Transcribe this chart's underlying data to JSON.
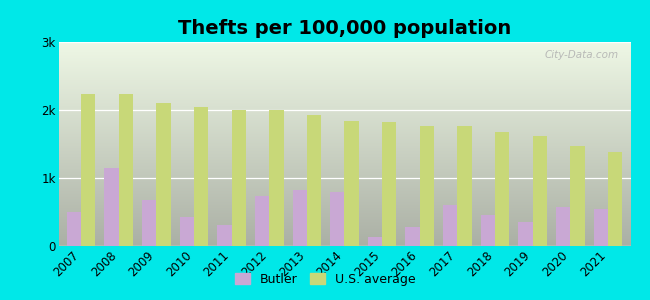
{
  "title": "Thefts per 100,000 population",
  "years": [
    2007,
    2008,
    2009,
    2010,
    2011,
    2012,
    2013,
    2014,
    2015,
    2016,
    2017,
    2018,
    2019,
    2020,
    2021
  ],
  "butler": [
    500,
    1150,
    680,
    430,
    310,
    740,
    820,
    790,
    130,
    280,
    600,
    460,
    360,
    580,
    540
  ],
  "us_avg": [
    2230,
    2230,
    2100,
    2040,
    2000,
    2000,
    1930,
    1840,
    1830,
    1760,
    1760,
    1680,
    1620,
    1470,
    1380
  ],
  "butler_color": "#c9a8d4",
  "us_avg_color": "#c8d878",
  "bar_width": 0.38,
  "ylim": [
    0,
    3000
  ],
  "yticks": [
    0,
    1000,
    2000,
    3000
  ],
  "ytick_labels": [
    "0",
    "1k",
    "2k",
    "3k"
  ],
  "bg_color": "#00e8e8",
  "plot_bg": "#e8f5e0",
  "legend_butler": "Butler",
  "legend_us": "U.S. average",
  "title_fontsize": 14,
  "tick_fontsize": 8.5,
  "legend_fontsize": 9,
  "watermark": "City-Data.com"
}
